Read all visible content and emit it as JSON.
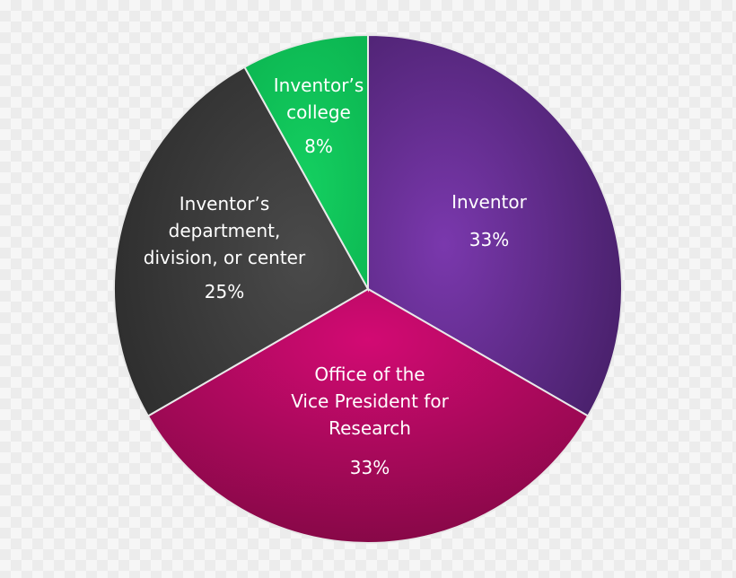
{
  "chart_data": {
    "type": "pie",
    "start_at": "top",
    "direction": "clockwise",
    "slices": [
      {
        "label_lines": [
          "Inventor"
        ],
        "value": 33,
        "percent_label": "33%",
        "color": "#5e2a86"
      },
      {
        "label_lines": [
          "Office of the",
          "Vice President for",
          "Research"
        ],
        "value": 33,
        "percent_label": "33%",
        "color": "#b0065a"
      },
      {
        "label_lines": [
          "Inventor’s",
          "department,",
          "division, or center"
        ],
        "value": 25,
        "percent_label": "25%",
        "color": "#3a3a3a"
      },
      {
        "label_lines": [
          "Inventor’s",
          "college"
        ],
        "value": 8,
        "percent_label": "8%",
        "color": "#0fc358"
      }
    ]
  }
}
